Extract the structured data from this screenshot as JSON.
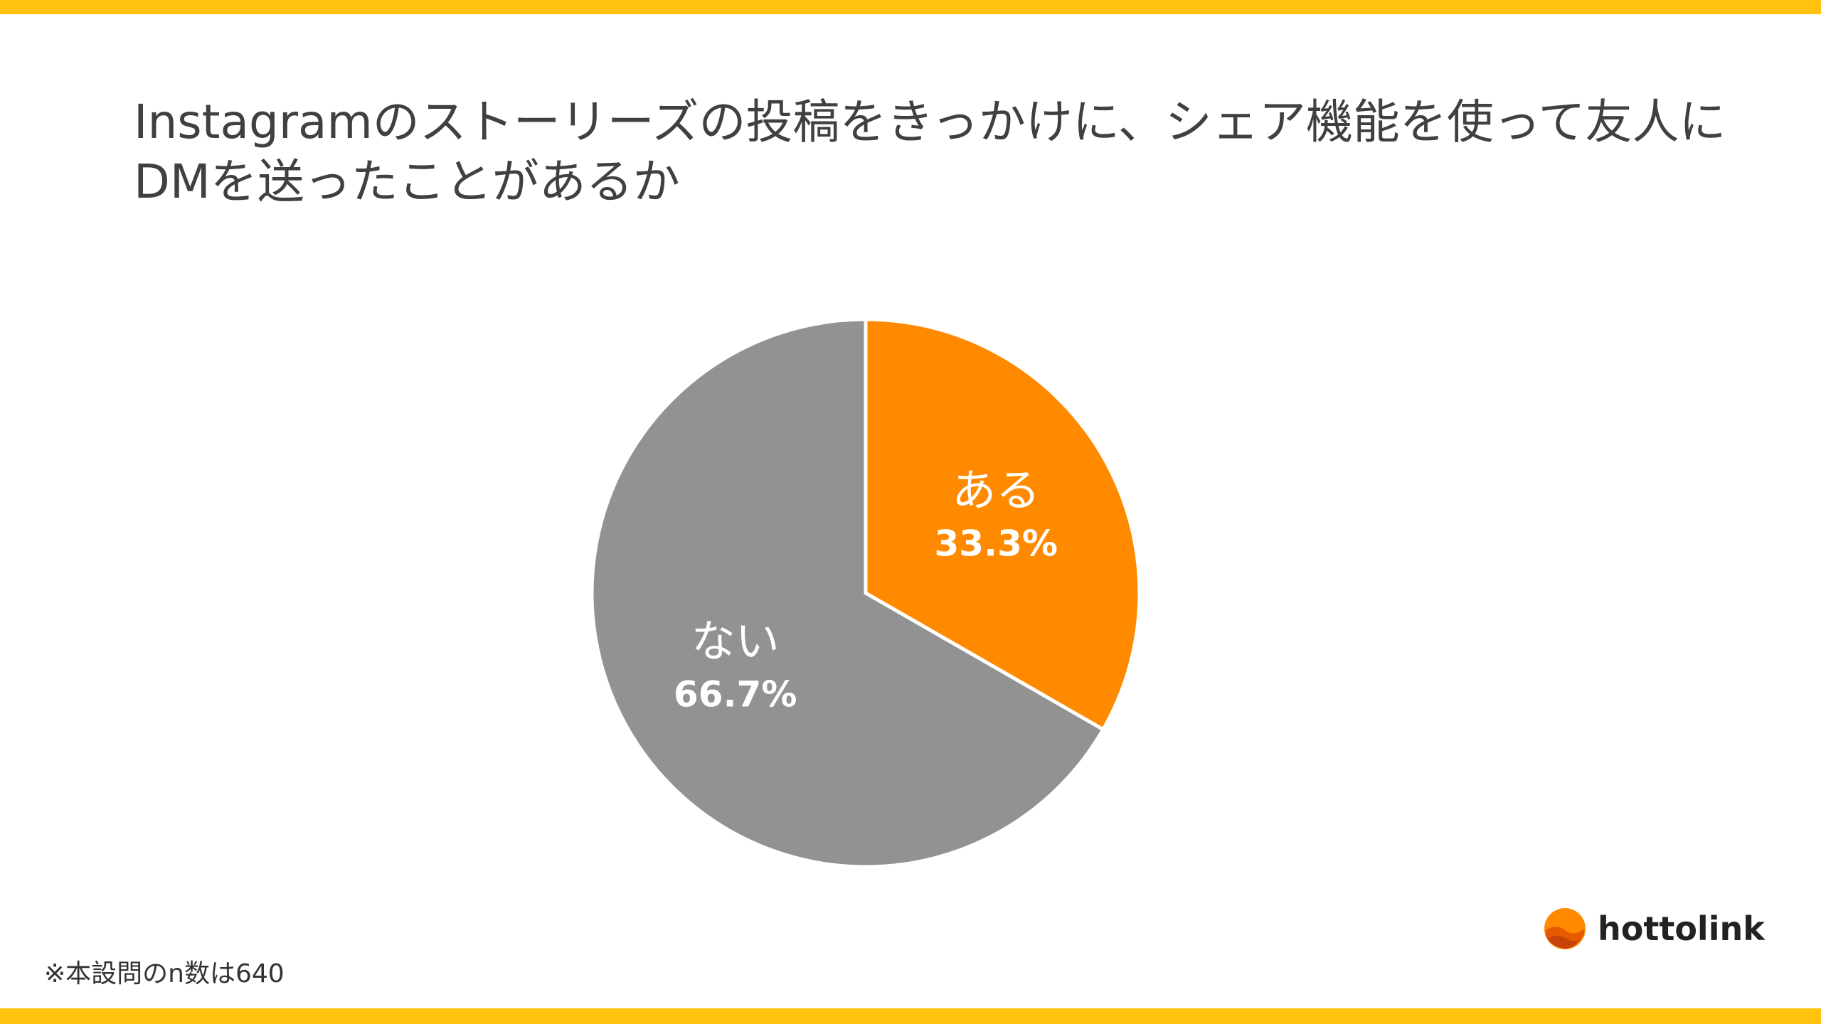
{
  "chart_data": {
    "type": "pie",
    "title": "Instagramのストーリーズの投稿をきっかけに、シェア機能を使って友人にDMを送ったことがあるか",
    "categories": [
      "ある",
      "ない"
    ],
    "values": [
      33.3,
      66.7
    ],
    "value_labels": [
      "33.3%",
      "66.7%"
    ],
    "colors": [
      "#FF8A00",
      "#929292"
    ]
  },
  "footnote": "※本設問のn数は640",
  "brand": "hottolink"
}
